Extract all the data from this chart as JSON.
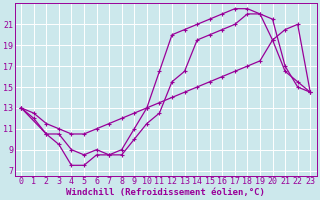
{
  "background_color": "#cce8ec",
  "grid_color": "#ffffff",
  "line_color": "#990099",
  "marker_color": "#990099",
  "xlabel": "Windchill (Refroidissement éolien,°C)",
  "xlim": [
    -0.5,
    23.5
  ],
  "ylim": [
    6.5,
    23.0
  ],
  "xticks": [
    0,
    1,
    2,
    3,
    4,
    5,
    6,
    7,
    8,
    9,
    10,
    11,
    12,
    13,
    14,
    15,
    16,
    17,
    18,
    19,
    20,
    21,
    22,
    23
  ],
  "yticks": [
    7,
    9,
    11,
    13,
    15,
    17,
    19,
    21
  ],
  "series1_x": [
    0,
    1,
    2,
    3,
    4,
    5,
    6,
    7,
    8,
    9,
    10,
    11,
    12,
    13,
    14,
    15,
    16,
    17,
    18,
    19,
    20,
    21,
    22,
    23
  ],
  "series1_y": [
    13.0,
    12.0,
    10.5,
    9.5,
    7.5,
    7.5,
    8.5,
    8.5,
    9.0,
    11.0,
    13.0,
    16.5,
    20.0,
    20.5,
    21.0,
    21.5,
    22.0,
    22.5,
    22.5,
    22.0,
    21.5,
    17.0,
    15.0,
    14.5
  ],
  "series2_x": [
    0,
    1,
    2,
    3,
    4,
    5,
    6,
    7,
    8,
    9,
    10,
    11,
    12,
    13,
    14,
    15,
    16,
    17,
    18,
    19,
    20,
    21,
    22,
    23
  ],
  "series2_y": [
    13.0,
    12.5,
    11.5,
    11.0,
    10.5,
    10.5,
    11.0,
    11.5,
    12.0,
    12.5,
    13.0,
    13.5,
    14.0,
    14.5,
    15.0,
    15.5,
    16.0,
    16.5,
    17.0,
    17.5,
    19.5,
    20.5,
    21.0,
    14.5
  ],
  "series3_x": [
    0,
    2,
    3,
    4,
    5,
    6,
    7,
    8,
    9,
    10,
    11,
    12,
    13,
    14,
    15,
    16,
    17,
    18,
    19,
    20,
    21,
    22,
    23
  ],
  "series3_y": [
    13.0,
    10.5,
    10.5,
    9.0,
    8.5,
    9.0,
    8.5,
    8.5,
    10.0,
    11.5,
    12.5,
    15.5,
    16.5,
    19.5,
    20.0,
    20.5,
    21.0,
    22.0,
    22.0,
    19.5,
    16.5,
    15.5,
    14.5
  ],
  "xlabel_fontsize": 6.5,
  "tick_fontsize": 6.0
}
